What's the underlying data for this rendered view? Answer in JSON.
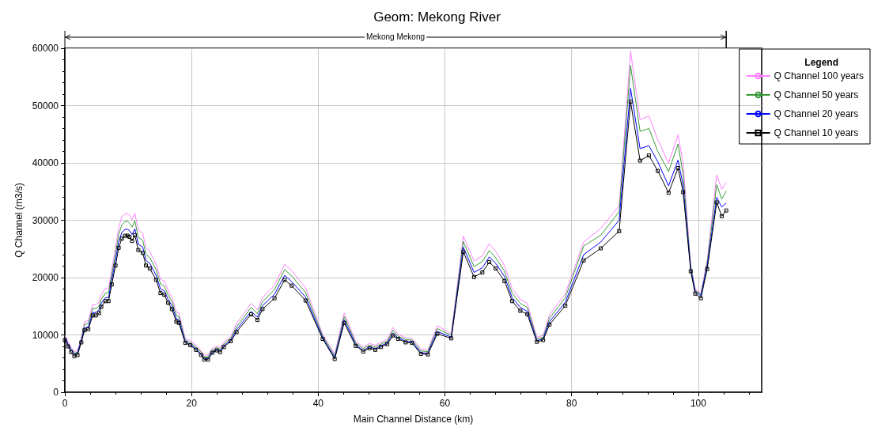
{
  "chart_data": {
    "type": "line",
    "title": "Geom: Mekong River",
    "xlabel": "Main Channel Distance (km)",
    "ylabel": "Q Channel (m3/s)",
    "legend_title": "Legend",
    "annotations": [
      "Mekong Mekong"
    ],
    "x": [
      0,
      0.5,
      1,
      1.5,
      2,
      2.6,
      3.1,
      3.7,
      4.4,
      4.9,
      5.4,
      5.75,
      6.4,
      6.9,
      7.4,
      8.0,
      8.5,
      9.0,
      9.5,
      9.9,
      10.2,
      10.6,
      11.05,
      11.6,
      12.3,
      12.8,
      13.4,
      14.4,
      15.1,
      15.7,
      16.3,
      16.9,
      17.6,
      18.0,
      19.0,
      19.8,
      20.7,
      21.5,
      22.0,
      22.6,
      23.3,
      24.0,
      24.5,
      25.1,
      26.2,
      27.1,
      29.4,
      30.4,
      31.2,
      33.1,
      34.7,
      35.8,
      38.0,
      40.7,
      42.6,
      44.1,
      45.9,
      47.1,
      48.1,
      49.0,
      49.9,
      50.9,
      51.8,
      52.6,
      53.8,
      54.8,
      56.2,
      57.3,
      58.8,
      61.0,
      62.9,
      64.6,
      65.9,
      67.0,
      68.0,
      69.4,
      70.6,
      71.9,
      73.0,
      74.5,
      75.5,
      76.5,
      79.0,
      81.9,
      84.6,
      87.5,
      89.3,
      90.8,
      92.2,
      93.6,
      95.3,
      96.8,
      97.6,
      98.8,
      99.5,
      100.4,
      101.4,
      102.9,
      103.7,
      104.4
    ],
    "series": [
      {
        "name": "Q Channel 100 years",
        "color": "#ff80ff",
        "marker": "none",
        "values": [
          9900,
          8800,
          7800,
          7100,
          7300,
          9500,
          12300,
          12500,
          15300,
          15300,
          15700,
          17000,
          18100,
          18100,
          21400,
          25200,
          28700,
          30600,
          31100,
          31100,
          30900,
          30100,
          31200,
          28300,
          27700,
          25200,
          24600,
          22300,
          19700,
          19400,
          17800,
          16500,
          14000,
          13800,
          9400,
          9000,
          8200,
          7300,
          6500,
          6500,
          7700,
          8100,
          7800,
          8700,
          9700,
          12000,
          15500,
          14400,
          16500,
          18700,
          22300,
          21200,
          18200,
          10100,
          6600,
          13800,
          8900,
          7900,
          8500,
          8200,
          8700,
          9200,
          11300,
          10100,
          9500,
          9400,
          7500,
          7400,
          11600,
          10200,
          27200,
          22900,
          23800,
          25900,
          24600,
          22100,
          18100,
          16200,
          15500,
          9600,
          9900,
          13500,
          17200,
          26200,
          28600,
          32500,
          59500,
          47500,
          48200,
          44000,
          40000,
          44900,
          40000,
          22000,
          18000,
          17300,
          23000,
          37900,
          35400,
          36600
        ]
      },
      {
        "name": "Q Channel 50 years",
        "color": "#339933",
        "marker": "none",
        "values": [
          9600,
          8500,
          7500,
          6800,
          7000,
          9200,
          11800,
          12000,
          14600,
          14600,
          15000,
          16200,
          17300,
          17300,
          20500,
          24100,
          27500,
          29200,
          29800,
          29800,
          29500,
          28800,
          29900,
          27000,
          26500,
          24100,
          23500,
          21400,
          18900,
          18500,
          17000,
          15800,
          13400,
          13200,
          9100,
          8700,
          7900,
          7000,
          6200,
          6200,
          7400,
          7800,
          7500,
          8400,
          9400,
          11400,
          14800,
          13700,
          15800,
          17900,
          21400,
          20300,
          17400,
          9800,
          6300,
          13200,
          8600,
          7600,
          8200,
          7900,
          8400,
          8900,
          10800,
          9800,
          9200,
          9100,
          7200,
          7100,
          11100,
          9900,
          26300,
          21900,
          22800,
          24700,
          23500,
          21100,
          17300,
          15500,
          14800,
          9300,
          9600,
          12900,
          16500,
          25500,
          27400,
          31500,
          57000,
          45500,
          46000,
          42000,
          38500,
          43300,
          38000,
          21800,
          17800,
          17000,
          22500,
          36200,
          33700,
          35100
        ]
      },
      {
        "name": "Q Channel 20 years",
        "color": "#0000ff",
        "marker": "none",
        "values": [
          9450,
          8350,
          7350,
          6650,
          6850,
          8950,
          11200,
          11400,
          13900,
          13900,
          14400,
          15500,
          16500,
          16500,
          19600,
          23000,
          26200,
          27900,
          28400,
          28400,
          28200,
          27500,
          28500,
          25800,
          25300,
          23000,
          22500,
          20400,
          18000,
          17700,
          16200,
          15100,
          12800,
          12600,
          8800,
          8400,
          7600,
          6700,
          5900,
          5900,
          7100,
          7500,
          7200,
          8100,
          9100,
          10900,
          14100,
          13100,
          15100,
          17100,
          20400,
          19300,
          16600,
          9500,
          6000,
          12600,
          8300,
          7300,
          7900,
          7600,
          8100,
          8600,
          10300,
          9500,
          8900,
          8800,
          6900,
          6800,
          10600,
          9600,
          25300,
          20900,
          21700,
          23600,
          22500,
          20200,
          16500,
          14800,
          14100,
          9000,
          9300,
          12300,
          15700,
          24000,
          26200,
          30000,
          53000,
          42500,
          43000,
          40200,
          36000,
          40500,
          36000,
          21500,
          17600,
          16800,
          22000,
          34000,
          32300,
          33000
        ]
      },
      {
        "name": "Q Channel 10 years",
        "color": "#000000",
        "marker": "square",
        "values": [
          9100,
          8000,
          7000,
          6300,
          6500,
          8700,
          10800,
          11000,
          13400,
          13400,
          13800,
          14900,
          15900,
          15900,
          18800,
          22100,
          25200,
          26800,
          27300,
          27300,
          27100,
          26400,
          27400,
          24800,
          24300,
          22100,
          21600,
          19600,
          17300,
          17000,
          15600,
          14500,
          12300,
          12100,
          8600,
          8200,
          7400,
          6500,
          5700,
          5700,
          6900,
          7300,
          7000,
          7900,
          8900,
          10500,
          13600,
          12600,
          14500,
          16400,
          19600,
          18600,
          16000,
          9300,
          5800,
          12100,
          8100,
          7100,
          7700,
          7400,
          7900,
          8400,
          9900,
          9300,
          8700,
          8600,
          6700,
          6600,
          10200,
          9400,
          24500,
          20100,
          20900,
          22700,
          21600,
          19400,
          15900,
          14200,
          13600,
          8800,
          9100,
          11800,
          15100,
          23000,
          25100,
          28100,
          50700,
          40400,
          41300,
          38600,
          34800,
          39100,
          34900,
          21100,
          17200,
          16400,
          21500,
          33100,
          30700,
          31700
        ]
      }
    ],
    "xlim": [
      0,
      110
    ],
    "xticks": [
      0,
      20,
      40,
      60,
      80,
      100
    ],
    "ylim": [
      0,
      60000
    ],
    "yticks": [
      0,
      10000,
      20000,
      30000,
      40000,
      50000,
      60000
    ],
    "grid": true,
    "legend": "right",
    "line_style": "solid"
  }
}
